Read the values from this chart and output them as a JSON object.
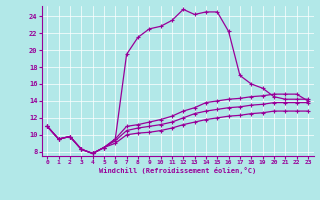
{
  "xlabel": "Windchill (Refroidissement éolien,°C)",
  "bg_color": "#b2e8e8",
  "line_color": "#990099",
  "xlim": [
    -0.5,
    23.5
  ],
  "ylim": [
    7.5,
    25.2
  ],
  "xticks": [
    0,
    1,
    2,
    3,
    4,
    5,
    6,
    7,
    8,
    9,
    10,
    11,
    12,
    13,
    14,
    15,
    16,
    17,
    18,
    19,
    20,
    21,
    22,
    23
  ],
  "yticks": [
    8,
    10,
    12,
    14,
    16,
    18,
    20,
    22,
    24
  ],
  "grid_color": "#ffffff",
  "line1_x": [
    0,
    1,
    2,
    3,
    4,
    5,
    6,
    7,
    8,
    9,
    10,
    11,
    12,
    13,
    14,
    15,
    16,
    17,
    18,
    19,
    20,
    21,
    22,
    23
  ],
  "line1_y": [
    11,
    9.5,
    9.8,
    8.3,
    7.8,
    8.5,
    9.5,
    19.5,
    21.5,
    22.5,
    22.8,
    23.5,
    24.8,
    24.2,
    24.5,
    24.5,
    22.2,
    17.0,
    16.0,
    15.5,
    14.5,
    14.2,
    14.2,
    14.2
  ],
  "line2_x": [
    0,
    1,
    2,
    3,
    4,
    5,
    6,
    7,
    8,
    9,
    10,
    11,
    12,
    13,
    14,
    15,
    16,
    17,
    18,
    19,
    20,
    21,
    22,
    23
  ],
  "line2_y": [
    11,
    9.5,
    9.8,
    8.3,
    7.8,
    8.5,
    9.5,
    11.0,
    11.2,
    11.5,
    11.8,
    12.2,
    12.8,
    13.2,
    13.8,
    14.0,
    14.2,
    14.3,
    14.5,
    14.6,
    14.8,
    14.8,
    14.8,
    14.0
  ],
  "line3_x": [
    0,
    1,
    2,
    3,
    4,
    5,
    6,
    7,
    8,
    9,
    10,
    11,
    12,
    13,
    14,
    15,
    16,
    17,
    18,
    19,
    20,
    21,
    22,
    23
  ],
  "line3_y": [
    11,
    9.5,
    9.8,
    8.3,
    7.8,
    8.5,
    9.3,
    10.5,
    10.8,
    11.0,
    11.2,
    11.5,
    12.0,
    12.5,
    12.8,
    13.0,
    13.2,
    13.3,
    13.5,
    13.6,
    13.8,
    13.8,
    13.8,
    13.8
  ],
  "line4_x": [
    0,
    1,
    2,
    3,
    4,
    5,
    6,
    7,
    8,
    9,
    10,
    11,
    12,
    13,
    14,
    15,
    16,
    17,
    18,
    19,
    20,
    21,
    22,
    23
  ],
  "line4_y": [
    11,
    9.5,
    9.8,
    8.3,
    7.8,
    8.5,
    9.0,
    10.0,
    10.2,
    10.3,
    10.5,
    10.8,
    11.2,
    11.5,
    11.8,
    12.0,
    12.2,
    12.3,
    12.5,
    12.6,
    12.8,
    12.8,
    12.8,
    12.8
  ]
}
